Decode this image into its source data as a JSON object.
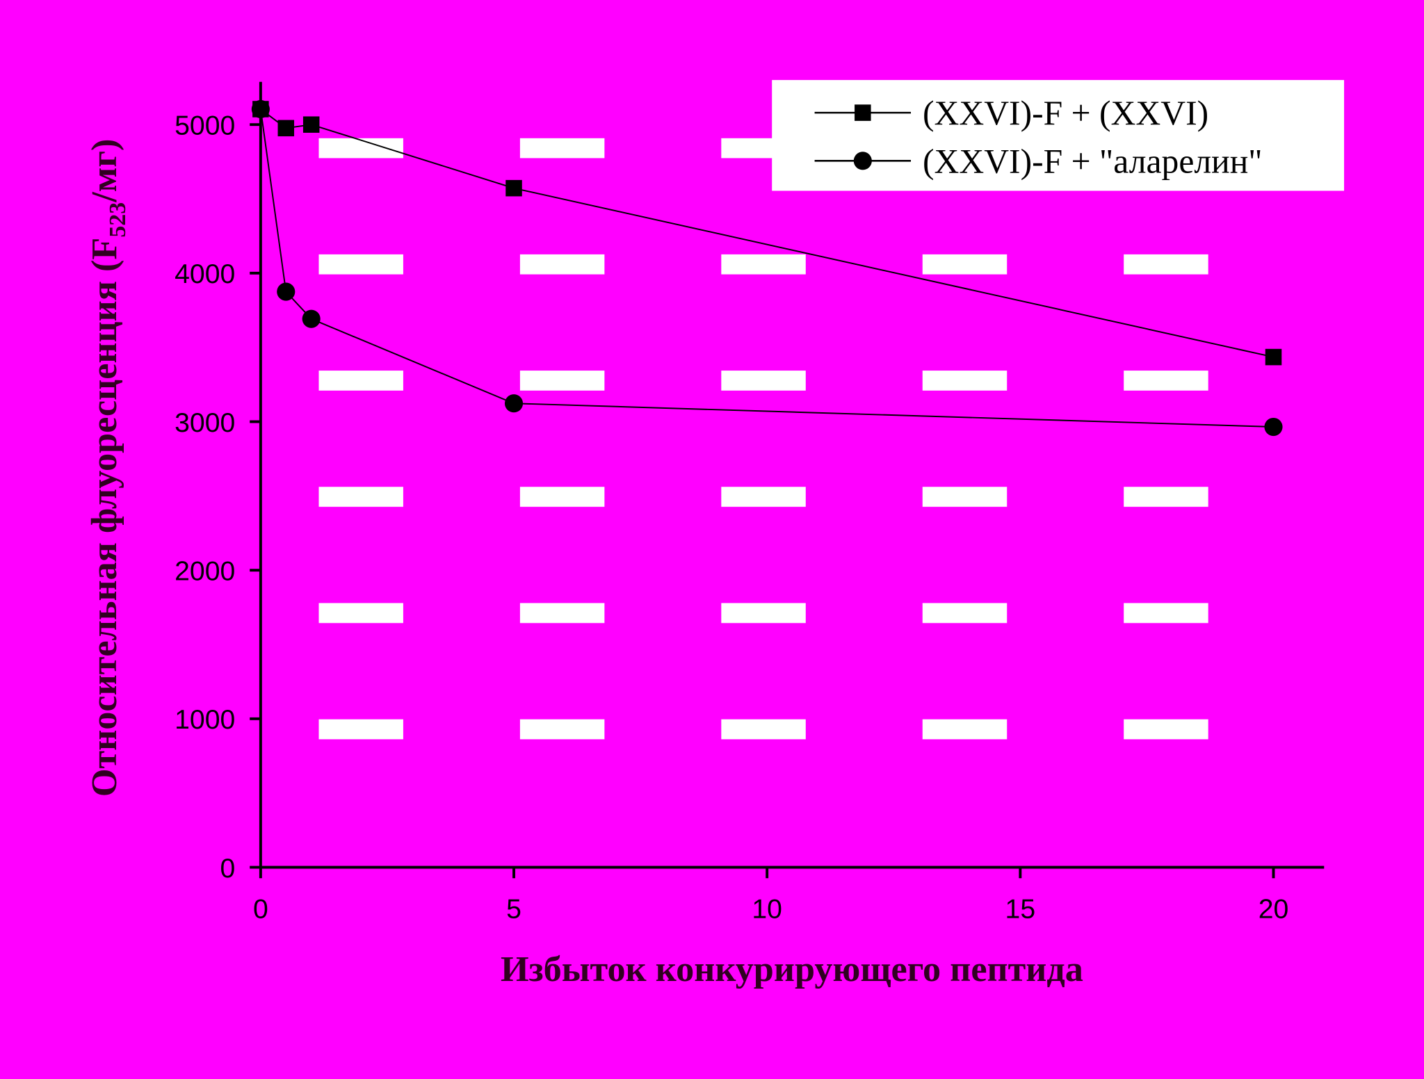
{
  "chart_data": {
    "type": "line",
    "xlabel": "Избыток конкурирующего пептида",
    "ylabel": [
      "Относительная флуоресценция (F",
      "523",
      "/мг)"
    ],
    "xlim": [
      0,
      21
    ],
    "xticks": [
      0,
      5,
      10,
      15,
      20
    ],
    "ylim": [
      0,
      5300
    ],
    "yticks": [
      0,
      1000,
      2000,
      3000,
      4000,
      5000
    ],
    "series": [
      {
        "name": "(XXVI)-F + (XXVI)",
        "color": "#000000",
        "marker": "square",
        "x": [
          0,
          0.5,
          1,
          5,
          20
        ],
        "values": [
          5104,
          4976,
          5000,
          4572,
          3435
        ]
      },
      {
        "name": "(XXVI)-F + \"аларелин\"",
        "color": "#000000",
        "marker": "circle",
        "x": [
          0,
          0.5,
          1,
          5,
          20
        ],
        "values": [
          5104,
          3875,
          3692,
          3123,
          2965
        ]
      }
    ]
  }
}
